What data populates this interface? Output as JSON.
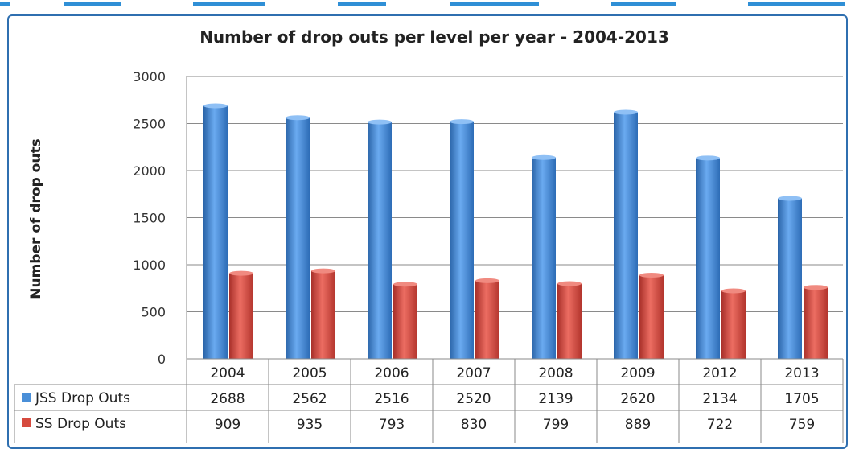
{
  "chart_data": {
    "type": "bar",
    "title": "Number of drop outs per level per year - 2004-2013",
    "ylabel": "Number of drop outs",
    "xlabel": "",
    "ylim": [
      0,
      3000
    ],
    "yticks": [
      "0",
      "500",
      "1000",
      "1500",
      "2000",
      "2500",
      "3000"
    ],
    "categories": [
      "2004",
      "2005",
      "2006",
      "2007",
      "2008",
      "2009",
      "2012",
      "2013"
    ],
    "series": [
      {
        "name": "JSS  Drop Outs",
        "color": "#4a8fd8",
        "values": [
          2688,
          2562,
          2516,
          2520,
          2139,
          2620,
          2134,
          1705
        ]
      },
      {
        "name": "SS  Drop Outs",
        "color": "#d64a3e",
        "values": [
          909,
          935,
          793,
          830,
          799,
          889,
          722,
          759
        ]
      }
    ],
    "grid": true,
    "legend": "data-table"
  }
}
